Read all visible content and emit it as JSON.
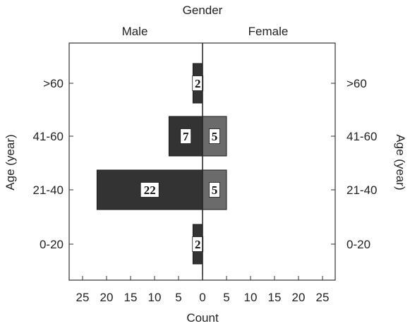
{
  "chart_data": {
    "type": "bar",
    "orientation": "horizontal",
    "layout": "population-pyramid",
    "title": "Gender",
    "xlabel": "Count",
    "ylabel_left": "Age (year)",
    "ylabel_right": "Age (year)",
    "categories": [
      ">60",
      "41-60",
      "21-40",
      "0-20"
    ],
    "series": [
      {
        "name": "Male",
        "side": "left",
        "values": [
          2,
          7,
          22,
          2
        ],
        "labels": [
          "2",
          "7",
          "22",
          "2"
        ],
        "color": "#333333"
      },
      {
        "name": "Female",
        "side": "right",
        "values": [
          0,
          5,
          5,
          0
        ],
        "labels": [
          "",
          "5",
          "5",
          ""
        ],
        "color": "#6b6b6b"
      }
    ],
    "xlim": [
      -25,
      25
    ],
    "x_ticks": [
      -25,
      -20,
      -15,
      -10,
      -5,
      0,
      5,
      10,
      15,
      20,
      25
    ],
    "x_tick_labels": [
      "25",
      "20",
      "15",
      "10",
      "5",
      "0",
      "5",
      "10",
      "15",
      "20",
      "25"
    ],
    "grid": false,
    "legend": "top"
  }
}
